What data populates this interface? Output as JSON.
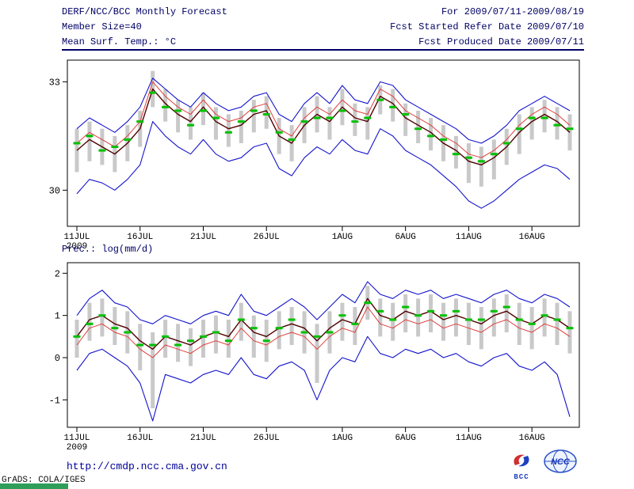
{
  "header": {
    "left": [
      "DERF/NCC/BCC Monthly Forecast",
      "Member Size=40"
    ],
    "right": [
      "For 2009/07/11-2009/08/19",
      "Fcst Started Refer Date 2009/07/10",
      "Fcst Produced Date 2009/07/11"
    ]
  },
  "colors": {
    "header_text": "#000066",
    "rule": "#000066",
    "url_text": "#000099",
    "grads_banner": "#2f9e5a",
    "envelope_blue": "#1414cc",
    "sd_red": "#e03c3c",
    "mean_dark": "#500000",
    "obs_green": "#00c000",
    "spread_gray": "#c9c9c9"
  },
  "chart_data": [
    {
      "type": "line",
      "title": "Mean Surf. Temp.: °C",
      "ylabel": "Mean Surf. Temp.: °C",
      "xlabel": "",
      "grid": false,
      "legend": "none",
      "n_days": 40,
      "ylim": [
        29.0,
        33.6
      ],
      "y_ticks": [
        30,
        33
      ],
      "x_tick_positions": [
        0,
        5,
        10,
        15,
        21,
        26,
        31,
        36
      ],
      "x_tick_labels": [
        "11JUL",
        "16JUL",
        "21JUL",
        "26JUL",
        "1AUG",
        "6AUG",
        "11AUG",
        "16AUG"
      ],
      "x_year_label": "2009",
      "series": [
        {
          "name": "ensemble-max",
          "color": "#1414cc",
          "width": 1.1,
          "values": [
            31.7,
            32.0,
            31.8,
            31.6,
            31.9,
            32.3,
            33.1,
            32.8,
            32.5,
            32.3,
            32.7,
            32.4,
            32.2,
            32.3,
            32.6,
            32.7,
            32.1,
            31.9,
            32.4,
            32.7,
            32.4,
            32.9,
            32.5,
            32.4,
            33.0,
            32.9,
            32.5,
            32.3,
            32.1,
            31.9,
            31.7,
            31.4,
            31.3,
            31.5,
            31.8,
            32.2,
            32.4,
            32.6,
            32.4,
            32.2
          ]
        },
        {
          "name": "ensemble-min",
          "color": "#1414cc",
          "width": 1.1,
          "values": [
            29.9,
            30.3,
            30.2,
            30.0,
            30.3,
            30.7,
            31.9,
            31.5,
            31.2,
            31.0,
            31.4,
            31.0,
            30.8,
            30.9,
            31.2,
            31.3,
            30.6,
            30.4,
            30.9,
            31.2,
            31.0,
            31.4,
            31.1,
            31.0,
            31.7,
            31.5,
            31.1,
            30.9,
            30.7,
            30.4,
            30.1,
            29.7,
            29.5,
            29.7,
            30.0,
            30.3,
            30.5,
            30.7,
            30.6,
            30.3
          ]
        },
        {
          "name": "mean-plus-sd",
          "color": "#e03c3c",
          "width": 1,
          "values": [
            31.3,
            31.6,
            31.4,
            31.2,
            31.5,
            31.9,
            33.0,
            32.6,
            32.3,
            32.1,
            32.5,
            32.1,
            31.9,
            32.0,
            32.3,
            32.4,
            31.7,
            31.5,
            32.0,
            32.3,
            32.1,
            32.5,
            32.2,
            32.1,
            32.8,
            32.6,
            32.2,
            32.0,
            31.8,
            31.5,
            31.3,
            31.0,
            30.9,
            31.1,
            31.4,
            31.8,
            32.1,
            32.3,
            32.1,
            31.8
          ]
        },
        {
          "name": "ensemble-mean",
          "color": "#500000",
          "width": 1.4,
          "values": [
            31.1,
            31.4,
            31.2,
            31.0,
            31.3,
            31.7,
            32.8,
            32.4,
            32.1,
            31.9,
            32.3,
            31.9,
            31.7,
            31.8,
            32.1,
            32.2,
            31.5,
            31.3,
            31.8,
            32.1,
            31.9,
            32.3,
            32.0,
            31.9,
            32.6,
            32.4,
            32.0,
            31.8,
            31.6,
            31.3,
            31.1,
            30.8,
            30.7,
            30.9,
            31.2,
            31.6,
            31.9,
            32.1,
            31.9,
            31.6
          ]
        }
      ],
      "dashes": {
        "name": "observation",
        "color": "#00c000",
        "values": [
          31.3,
          31.5,
          31.1,
          31.2,
          31.4,
          31.9,
          32.7,
          32.3,
          32.2,
          31.8,
          32.2,
          32.0,
          31.6,
          31.9,
          32.2,
          32.1,
          31.6,
          31.4,
          31.9,
          32.0,
          32.0,
          32.2,
          31.9,
          32.0,
          32.5,
          32.3,
          32.1,
          31.7,
          31.5,
          31.4,
          31.0,
          30.9,
          30.8,
          31.0,
          31.3,
          31.7,
          32.0,
          32.0,
          31.8,
          31.7
        ]
      },
      "bars": {
        "name": "member-spread",
        "color": "#c9c9c9",
        "top": [
          31.7,
          31.9,
          31.7,
          31.5,
          31.8,
          32.2,
          33.3,
          32.8,
          32.5,
          32.3,
          32.7,
          32.3,
          32.1,
          32.2,
          32.5,
          32.6,
          32.0,
          31.8,
          32.3,
          32.6,
          32.3,
          32.8,
          32.4,
          32.3,
          32.9,
          32.8,
          32.4,
          32.2,
          32.0,
          31.8,
          31.5,
          31.3,
          31.2,
          31.4,
          31.7,
          32.1,
          32.3,
          32.5,
          32.3,
          32.1
        ],
        "bottom": [
          30.5,
          30.8,
          30.7,
          30.5,
          30.8,
          31.2,
          32.3,
          31.9,
          31.6,
          31.4,
          31.8,
          31.4,
          31.2,
          31.3,
          31.6,
          31.7,
          31.0,
          30.8,
          31.3,
          31.6,
          31.4,
          31.8,
          31.5,
          31.4,
          32.1,
          31.9,
          31.5,
          31.3,
          31.1,
          30.8,
          30.6,
          30.2,
          30.1,
          30.3,
          30.7,
          31.0,
          31.4,
          31.6,
          31.4,
          31.1
        ]
      }
    },
    {
      "type": "line",
      "title": "Prec.: log(mm/d)",
      "ylabel": "Prec.: log(mm/d)",
      "xlabel": "",
      "grid": false,
      "legend": "none",
      "n_days": 40,
      "ylim": [
        -1.65,
        2.25
      ],
      "y_ticks": [
        -1,
        0,
        1,
        2
      ],
      "x_tick_positions": [
        0,
        5,
        10,
        15,
        21,
        26,
        31,
        36
      ],
      "x_tick_labels": [
        "11JUL",
        "16JUL",
        "21JUL",
        "26JUL",
        "1AUG",
        "6AUG",
        "11AUG",
        "16AUG"
      ],
      "x_year_label": "2009",
      "series": [
        {
          "name": "ensemble-max",
          "color": "#1414cc",
          "width": 1.1,
          "values": [
            1.0,
            1.4,
            1.6,
            1.3,
            1.2,
            0.9,
            0.8,
            1.0,
            0.9,
            0.8,
            1.0,
            1.1,
            1.0,
            1.5,
            1.1,
            1.0,
            1.2,
            1.4,
            1.2,
            0.9,
            1.2,
            1.5,
            1.3,
            1.8,
            1.5,
            1.4,
            1.6,
            1.5,
            1.6,
            1.4,
            1.5,
            1.4,
            1.3,
            1.5,
            1.6,
            1.4,
            1.3,
            1.5,
            1.4,
            1.2
          ]
        },
        {
          "name": "ensemble-min",
          "color": "#1414cc",
          "width": 1.1,
          "values": [
            -0.3,
            0.1,
            0.2,
            0.0,
            -0.2,
            -0.6,
            -1.5,
            -0.4,
            -0.5,
            -0.6,
            -0.4,
            -0.3,
            -0.4,
            0.0,
            -0.4,
            -0.5,
            -0.2,
            -0.1,
            -0.3,
            -1.0,
            -0.3,
            0.0,
            -0.1,
            0.5,
            0.1,
            0.0,
            0.2,
            0.1,
            0.2,
            0.0,
            0.1,
            -0.1,
            -0.2,
            0.0,
            0.1,
            -0.2,
            -0.3,
            -0.1,
            -0.4,
            -1.4
          ]
        },
        {
          "name": "mean-minus-sd",
          "color": "#e03c3c",
          "width": 1,
          "values": [
            0.3,
            0.7,
            0.8,
            0.6,
            0.5,
            0.2,
            0.0,
            0.3,
            0.2,
            0.1,
            0.3,
            0.4,
            0.3,
            0.7,
            0.4,
            0.3,
            0.5,
            0.6,
            0.5,
            0.2,
            0.5,
            0.7,
            0.6,
            1.2,
            0.8,
            0.7,
            0.9,
            0.8,
            0.9,
            0.7,
            0.8,
            0.7,
            0.6,
            0.8,
            0.9,
            0.7,
            0.6,
            0.8,
            0.7,
            0.5
          ]
        },
        {
          "name": "ensemble-mean",
          "color": "#500000",
          "width": 1.4,
          "values": [
            0.5,
            0.9,
            1.0,
            0.8,
            0.7,
            0.4,
            0.2,
            0.5,
            0.4,
            0.3,
            0.5,
            0.6,
            0.5,
            0.9,
            0.6,
            0.5,
            0.7,
            0.8,
            0.7,
            0.4,
            0.7,
            0.9,
            0.8,
            1.4,
            1.0,
            0.9,
            1.1,
            1.0,
            1.1,
            0.9,
            1.0,
            0.9,
            0.8,
            1.0,
            1.1,
            0.9,
            0.8,
            1.0,
            0.9,
            0.7
          ]
        }
      ],
      "dashes": {
        "name": "observation",
        "color": "#00c000",
        "values": [
          0.5,
          0.8,
          1.0,
          0.7,
          0.6,
          0.3,
          0.3,
          0.5,
          0.3,
          0.4,
          0.5,
          0.6,
          0.4,
          0.9,
          0.7,
          0.4,
          0.7,
          0.9,
          0.6,
          0.5,
          0.6,
          1.0,
          0.8,
          1.3,
          1.1,
          0.9,
          1.2,
          1.0,
          1.1,
          1.0,
          1.1,
          0.9,
          0.9,
          1.1,
          1.2,
          0.9,
          0.8,
          1.0,
          0.9,
          0.7
        ]
      },
      "bars": {
        "name": "member-spread",
        "color": "#c9c9c9",
        "top": [
          0.9,
          1.3,
          1.4,
          1.2,
          1.1,
          0.8,
          0.6,
          0.9,
          0.8,
          0.7,
          0.9,
          1.0,
          0.9,
          1.3,
          1.0,
          0.9,
          1.1,
          1.2,
          1.1,
          0.8,
          1.1,
          1.3,
          1.2,
          1.7,
          1.4,
          1.3,
          1.5,
          1.4,
          1.5,
          1.3,
          1.4,
          1.3,
          1.2,
          1.4,
          1.5,
          1.3,
          1.2,
          1.4,
          1.3,
          1.1
        ],
        "bottom": [
          0.0,
          0.4,
          0.5,
          0.3,
          0.1,
          -0.3,
          -1.2,
          0.0,
          -0.1,
          -0.2,
          0.0,
          0.1,
          0.0,
          0.4,
          0.0,
          -0.1,
          0.2,
          0.3,
          0.1,
          -0.6,
          0.1,
          0.4,
          0.3,
          0.9,
          0.5,
          0.4,
          0.6,
          0.5,
          0.6,
          0.4,
          0.5,
          0.3,
          0.2,
          0.5,
          0.6,
          0.3,
          0.2,
          0.5,
          0.3,
          0.1
        ]
      }
    }
  ],
  "footer": {
    "url": "http://cmdp.ncc.cma.gov.cn",
    "credit": "GrADS: COLA/IGES",
    "logos": [
      {
        "name": "bcc-logo",
        "label": "BCC"
      },
      {
        "name": "ncc-logo",
        "label": "NCC"
      }
    ]
  }
}
